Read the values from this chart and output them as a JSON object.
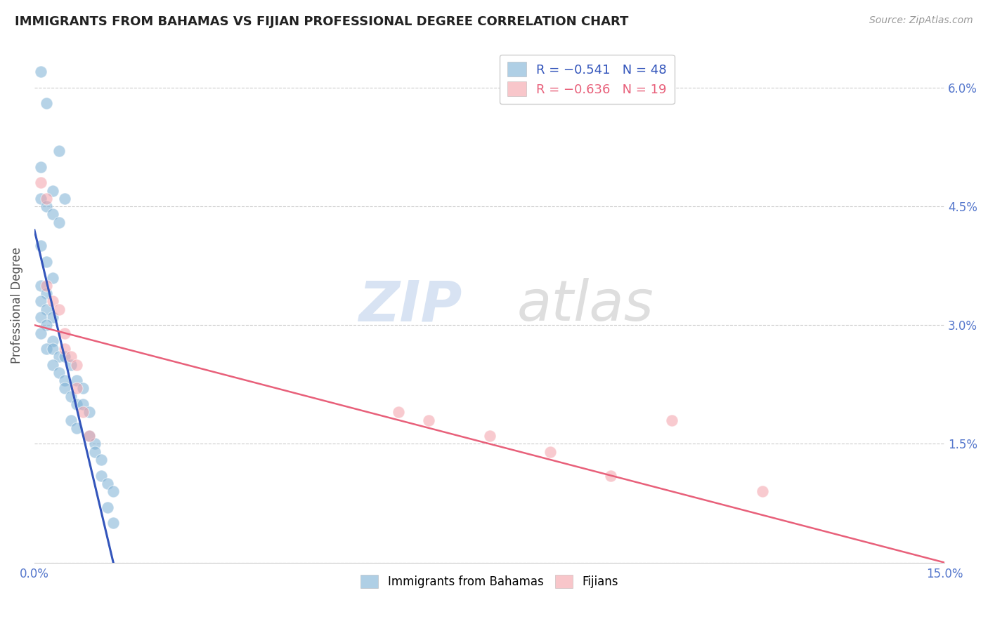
{
  "title": "IMMIGRANTS FROM BAHAMAS VS FIJIAN PROFESSIONAL DEGREE CORRELATION CHART",
  "source": "Source: ZipAtlas.com",
  "ylabel": "Professional Degree",
  "x_min": 0.0,
  "x_max": 0.15,
  "y_min": 0.0,
  "y_max": 0.065,
  "x_ticks": [
    0.0,
    0.03,
    0.06,
    0.09,
    0.12,
    0.15
  ],
  "x_tick_labels": [
    "0.0%",
    "",
    "",
    "",
    "",
    "15.0%"
  ],
  "y_ticks": [
    0.0,
    0.015,
    0.03,
    0.045,
    0.06
  ],
  "y_tick_labels_right": [
    "",
    "1.5%",
    "3.0%",
    "4.5%",
    "6.0%"
  ],
  "blue_R": "-0.541",
  "blue_N": "48",
  "pink_R": "-0.636",
  "pink_N": "19",
  "blue_scatter_x": [
    0.001,
    0.002,
    0.004,
    0.001,
    0.003,
    0.005,
    0.001,
    0.002,
    0.003,
    0.004,
    0.001,
    0.002,
    0.003,
    0.001,
    0.002,
    0.001,
    0.002,
    0.003,
    0.001,
    0.002,
    0.001,
    0.003,
    0.002,
    0.003,
    0.004,
    0.005,
    0.006,
    0.003,
    0.004,
    0.005,
    0.007,
    0.008,
    0.005,
    0.006,
    0.007,
    0.008,
    0.009,
    0.006,
    0.007,
    0.009,
    0.01,
    0.01,
    0.011,
    0.011,
    0.012,
    0.013,
    0.012,
    0.013
  ],
  "blue_scatter_y": [
    0.062,
    0.058,
    0.052,
    0.05,
    0.047,
    0.046,
    0.046,
    0.045,
    0.044,
    0.043,
    0.04,
    0.038,
    0.036,
    0.035,
    0.034,
    0.033,
    0.032,
    0.031,
    0.031,
    0.03,
    0.029,
    0.028,
    0.027,
    0.027,
    0.026,
    0.026,
    0.025,
    0.025,
    0.024,
    0.023,
    0.023,
    0.022,
    0.022,
    0.021,
    0.02,
    0.02,
    0.019,
    0.018,
    0.017,
    0.016,
    0.015,
    0.014,
    0.013,
    0.011,
    0.01,
    0.009,
    0.007,
    0.005
  ],
  "pink_scatter_x": [
    0.001,
    0.002,
    0.002,
    0.003,
    0.004,
    0.005,
    0.005,
    0.006,
    0.007,
    0.007,
    0.008,
    0.009,
    0.06,
    0.065,
    0.075,
    0.085,
    0.095,
    0.105,
    0.12
  ],
  "pink_scatter_y": [
    0.048,
    0.046,
    0.035,
    0.033,
    0.032,
    0.029,
    0.027,
    0.026,
    0.025,
    0.022,
    0.019,
    0.016,
    0.019,
    0.018,
    0.016,
    0.014,
    0.011,
    0.018,
    0.009
  ],
  "blue_line_x": [
    0.0,
    0.013
  ],
  "blue_line_y": [
    0.042,
    0.0
  ],
  "pink_line_x": [
    0.0,
    0.15
  ],
  "pink_line_y": [
    0.03,
    0.0
  ],
  "watermark_zip": "ZIP",
  "watermark_atlas": "atlas",
  "bg_color": "#ffffff",
  "blue_color": "#7BAFD4",
  "pink_color": "#F4A0A8",
  "blue_line_color": "#3355BB",
  "pink_line_color": "#E8607A",
  "grid_color": "#cccccc",
  "legend_text_blue": "R = −0.541   N = 48",
  "legend_text_pink": "R = −0.636   N = 19"
}
